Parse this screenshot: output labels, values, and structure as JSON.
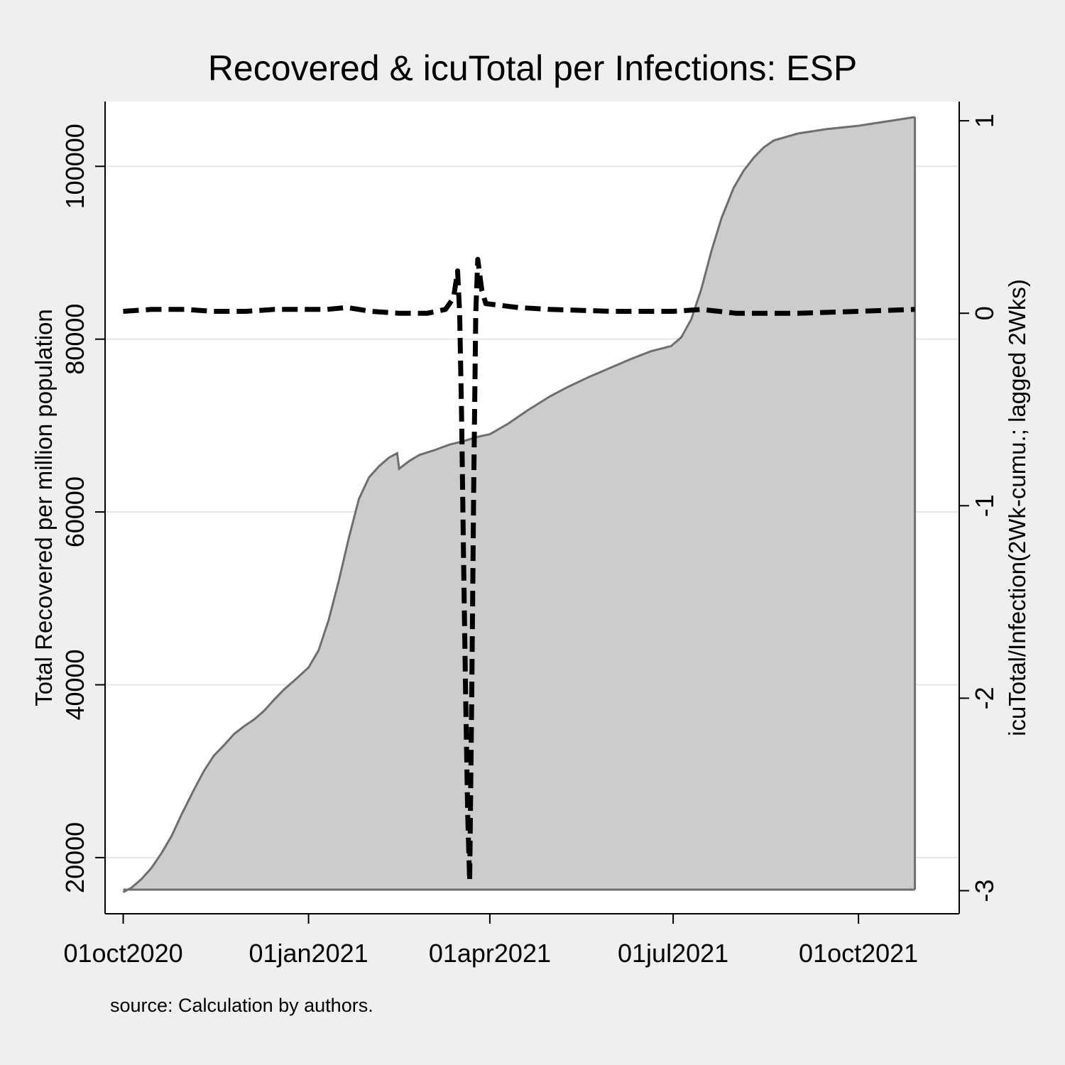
{
  "chart_data": {
    "type": "area",
    "title": "Recovered & icuTotal per Infections: ESP",
    "note": "source: Calculation by authors.",
    "x_axis": {
      "type": "date",
      "ticks": [
        {
          "date": "2020-10-01",
          "label": "01oct2020"
        },
        {
          "date": "2021-01-01",
          "label": "01jan2021"
        },
        {
          "date": "2021-04-01",
          "label": "01apr2021"
        },
        {
          "date": "2021-07-01",
          "label": "01jul2021"
        },
        {
          "date": "2021-10-01",
          "label": "01oct2021"
        }
      ],
      "range": [
        "2020-09-22",
        "2021-11-20"
      ]
    },
    "y_left": {
      "label": "Total Recovered per million population",
      "ticks": [
        20000,
        40000,
        60000,
        80000,
        100000
      ],
      "range": [
        13500,
        107500
      ],
      "grid": true
    },
    "y_right": {
      "label": "icuTotal/Infection(2Wk-cumu.; lagged 2Wks)",
      "ticks": [
        1,
        0,
        -1,
        -2,
        -3
      ],
      "tick_labels": [
        "1",
        "0",
        "-1",
        "-2",
        "-3"
      ],
      "range": [
        -3.12,
        1.1
      ]
    },
    "series": [
      {
        "axis": "left",
        "style": "area",
        "fill": "#cccccc",
        "stroke": "#6e6e6e",
        "points": [
          [
            "2020-10-01",
            16000
          ],
          [
            "2020-10-05",
            16500
          ],
          [
            "2020-10-10",
            17500
          ],
          [
            "2020-10-15",
            18800
          ],
          [
            "2020-10-20",
            20500
          ],
          [
            "2020-10-25",
            22500
          ],
          [
            "2020-10-30",
            25000
          ],
          [
            "2020-11-05",
            27800
          ],
          [
            "2020-11-10",
            30000
          ],
          [
            "2020-11-15",
            31800
          ],
          [
            "2020-11-20",
            33000
          ],
          [
            "2020-11-25",
            34300
          ],
          [
            "2020-11-30",
            35200
          ],
          [
            "2020-12-05",
            36000
          ],
          [
            "2020-12-10",
            37000
          ],
          [
            "2020-12-15",
            38300
          ],
          [
            "2020-12-20",
            39500
          ],
          [
            "2020-12-25",
            40500
          ],
          [
            "2021-01-01",
            42000
          ],
          [
            "2021-01-06",
            44000
          ],
          [
            "2021-01-11",
            47500
          ],
          [
            "2021-01-16",
            52000
          ],
          [
            "2021-01-21",
            57000
          ],
          [
            "2021-01-26",
            61500
          ],
          [
            "2021-01-31",
            64000
          ],
          [
            "2021-02-05",
            65300
          ],
          [
            "2021-02-10",
            66300
          ],
          [
            "2021-02-14",
            66800
          ],
          [
            "2021-02-15",
            65000
          ],
          [
            "2021-02-20",
            65900
          ],
          [
            "2021-02-25",
            66600
          ],
          [
            "2021-03-05",
            67200
          ],
          [
            "2021-03-12",
            67800
          ],
          [
            "2021-03-19",
            68200
          ],
          [
            "2021-03-26",
            68700
          ],
          [
            "2021-04-01",
            69000
          ],
          [
            "2021-04-10",
            70200
          ],
          [
            "2021-04-20",
            71800
          ],
          [
            "2021-05-01",
            73400
          ],
          [
            "2021-05-10",
            74500
          ],
          [
            "2021-05-20",
            75600
          ],
          [
            "2021-06-01",
            76800
          ],
          [
            "2021-06-10",
            77700
          ],
          [
            "2021-06-20",
            78600
          ],
          [
            "2021-06-30",
            79200
          ],
          [
            "2021-07-05",
            80200
          ],
          [
            "2021-07-10",
            82300
          ],
          [
            "2021-07-15",
            85800
          ],
          [
            "2021-07-20",
            90200
          ],
          [
            "2021-07-25",
            94000
          ],
          [
            "2021-07-31",
            97500
          ],
          [
            "2021-08-05",
            99500
          ],
          [
            "2021-08-10",
            101000
          ],
          [
            "2021-08-15",
            102200
          ],
          [
            "2021-08-20",
            103000
          ],
          [
            "2021-09-01",
            103800
          ],
          [
            "2021-09-15",
            104300
          ],
          [
            "2021-10-01",
            104700
          ],
          [
            "2021-10-15",
            105200
          ],
          [
            "2021-10-29",
            105700
          ]
        ]
      },
      {
        "axis": "right",
        "style": "dashed-line",
        "stroke": "#000000",
        "points": [
          [
            "2020-10-01",
            0.01
          ],
          [
            "2020-10-15",
            0.02
          ],
          [
            "2020-11-01",
            0.02
          ],
          [
            "2020-11-15",
            0.01
          ],
          [
            "2020-12-01",
            0.01
          ],
          [
            "2020-12-15",
            0.02
          ],
          [
            "2021-01-01",
            0.02
          ],
          [
            "2021-01-10",
            0.02
          ],
          [
            "2021-01-20",
            0.03
          ],
          [
            "2021-02-01",
            0.01
          ],
          [
            "2021-02-15",
            0.0
          ],
          [
            "2021-03-01",
            0.0
          ],
          [
            "2021-03-10",
            0.02
          ],
          [
            "2021-03-14",
            0.08
          ],
          [
            "2021-03-16",
            0.22
          ],
          [
            "2021-03-17",
            0.0
          ],
          [
            "2021-03-18",
            -0.55
          ],
          [
            "2021-03-19",
            -1.3
          ],
          [
            "2021-03-20",
            -2.0
          ],
          [
            "2021-03-21",
            -2.6
          ],
          [
            "2021-03-22",
            -2.95
          ],
          [
            "2021-03-23",
            -2.0
          ],
          [
            "2021-03-24",
            -0.9
          ],
          [
            "2021-03-25",
            0.0
          ],
          [
            "2021-03-26",
            0.28
          ],
          [
            "2021-03-28",
            0.12
          ],
          [
            "2021-03-30",
            0.05
          ],
          [
            "2021-04-15",
            0.03
          ],
          [
            "2021-05-01",
            0.02
          ],
          [
            "2021-06-01",
            0.01
          ],
          [
            "2021-07-01",
            0.01
          ],
          [
            "2021-07-15",
            0.02
          ],
          [
            "2021-08-01",
            0.0
          ],
          [
            "2021-09-01",
            0.0
          ],
          [
            "2021-10-01",
            0.01
          ],
          [
            "2021-10-29",
            0.02
          ]
        ]
      }
    ]
  }
}
